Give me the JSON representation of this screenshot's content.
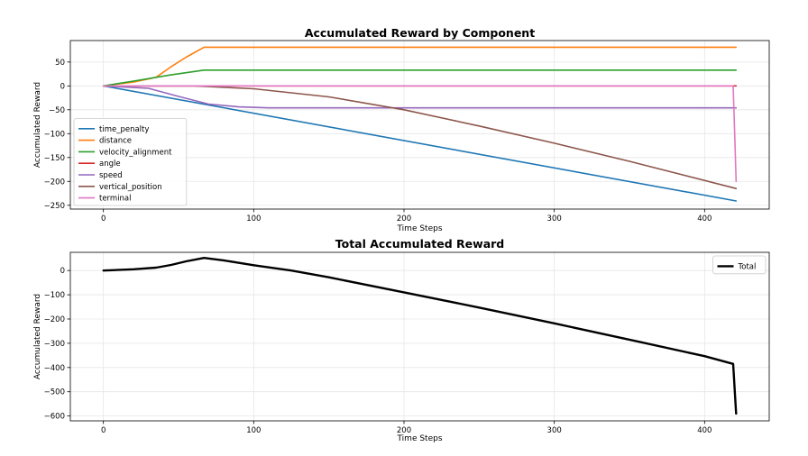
{
  "chart_data": [
    {
      "type": "line",
      "title": "Accumulated Reward by Component",
      "xlabel": "Time Steps",
      "ylabel": "Accumulated Reward",
      "xlim": [
        -22,
        443
      ],
      "ylim": [
        -258,
        95
      ],
      "xticks": [
        0,
        100,
        200,
        300,
        400
      ],
      "yticks": [
        50,
        0,
        -50,
        -100,
        -150,
        -200,
        -250
      ],
      "grid": true,
      "legend_position": "lower-left",
      "series": [
        {
          "name": "time_penalty",
          "color": "#1f77b4",
          "x": [
            0,
            421
          ],
          "y": [
            0,
            -241
          ]
        },
        {
          "name": "distance",
          "color": "#ff7f0e",
          "x": [
            0,
            20,
            35,
            45,
            55,
            67,
            421
          ],
          "y": [
            0,
            8,
            18,
            40,
            60,
            81,
            81
          ]
        },
        {
          "name": "velocity_alignment",
          "color": "#2ca02c",
          "x": [
            0,
            20,
            45,
            67,
            421
          ],
          "y": [
            0,
            10,
            23,
            33,
            33
          ]
        },
        {
          "name": "angle",
          "color": "#d62728",
          "x": [
            0,
            421
          ],
          "y": [
            0,
            0
          ]
        },
        {
          "name": "speed",
          "color": "#9467bd",
          "x": [
            0,
            30,
            50,
            70,
            90,
            110,
            421
          ],
          "y": [
            0,
            -5,
            -22,
            -38,
            -44,
            -46,
            -46
          ]
        },
        {
          "name": "vertical_position",
          "color": "#8c564b",
          "x": [
            0,
            60,
            100,
            150,
            200,
            250,
            300,
            350,
            421
          ],
          "y": [
            0,
            0,
            -6,
            -23,
            -50,
            -84,
            -120,
            -158,
            -215
          ]
        },
        {
          "name": "terminal",
          "color": "#e377c2",
          "x": [
            0,
            419,
            420,
            421
          ],
          "y": [
            0,
            0,
            -100,
            -200
          ]
        }
      ]
    },
    {
      "type": "line",
      "title": "Total Accumulated Reward",
      "xlabel": "Time Steps",
      "ylabel": "Accumulated Reward",
      "xlim": [
        -22,
        443
      ],
      "ylim": [
        -620,
        75
      ],
      "xticks": [
        0,
        100,
        200,
        300,
        400
      ],
      "yticks": [
        0,
        -100,
        -200,
        -300,
        -400,
        -500,
        -600
      ],
      "grid": true,
      "legend_position": "top-right",
      "series": [
        {
          "name": "Total",
          "color": "#000000",
          "x": [
            0,
            20,
            35,
            45,
            55,
            67,
            80,
            100,
            125,
            150,
            200,
            250,
            300,
            350,
            400,
            419,
            421
          ],
          "y": [
            0,
            5,
            12,
            23,
            38,
            52,
            42,
            22,
            0,
            -28,
            -90,
            -153,
            -218,
            -285,
            -353,
            -385,
            -590
          ]
        }
      ]
    }
  ]
}
